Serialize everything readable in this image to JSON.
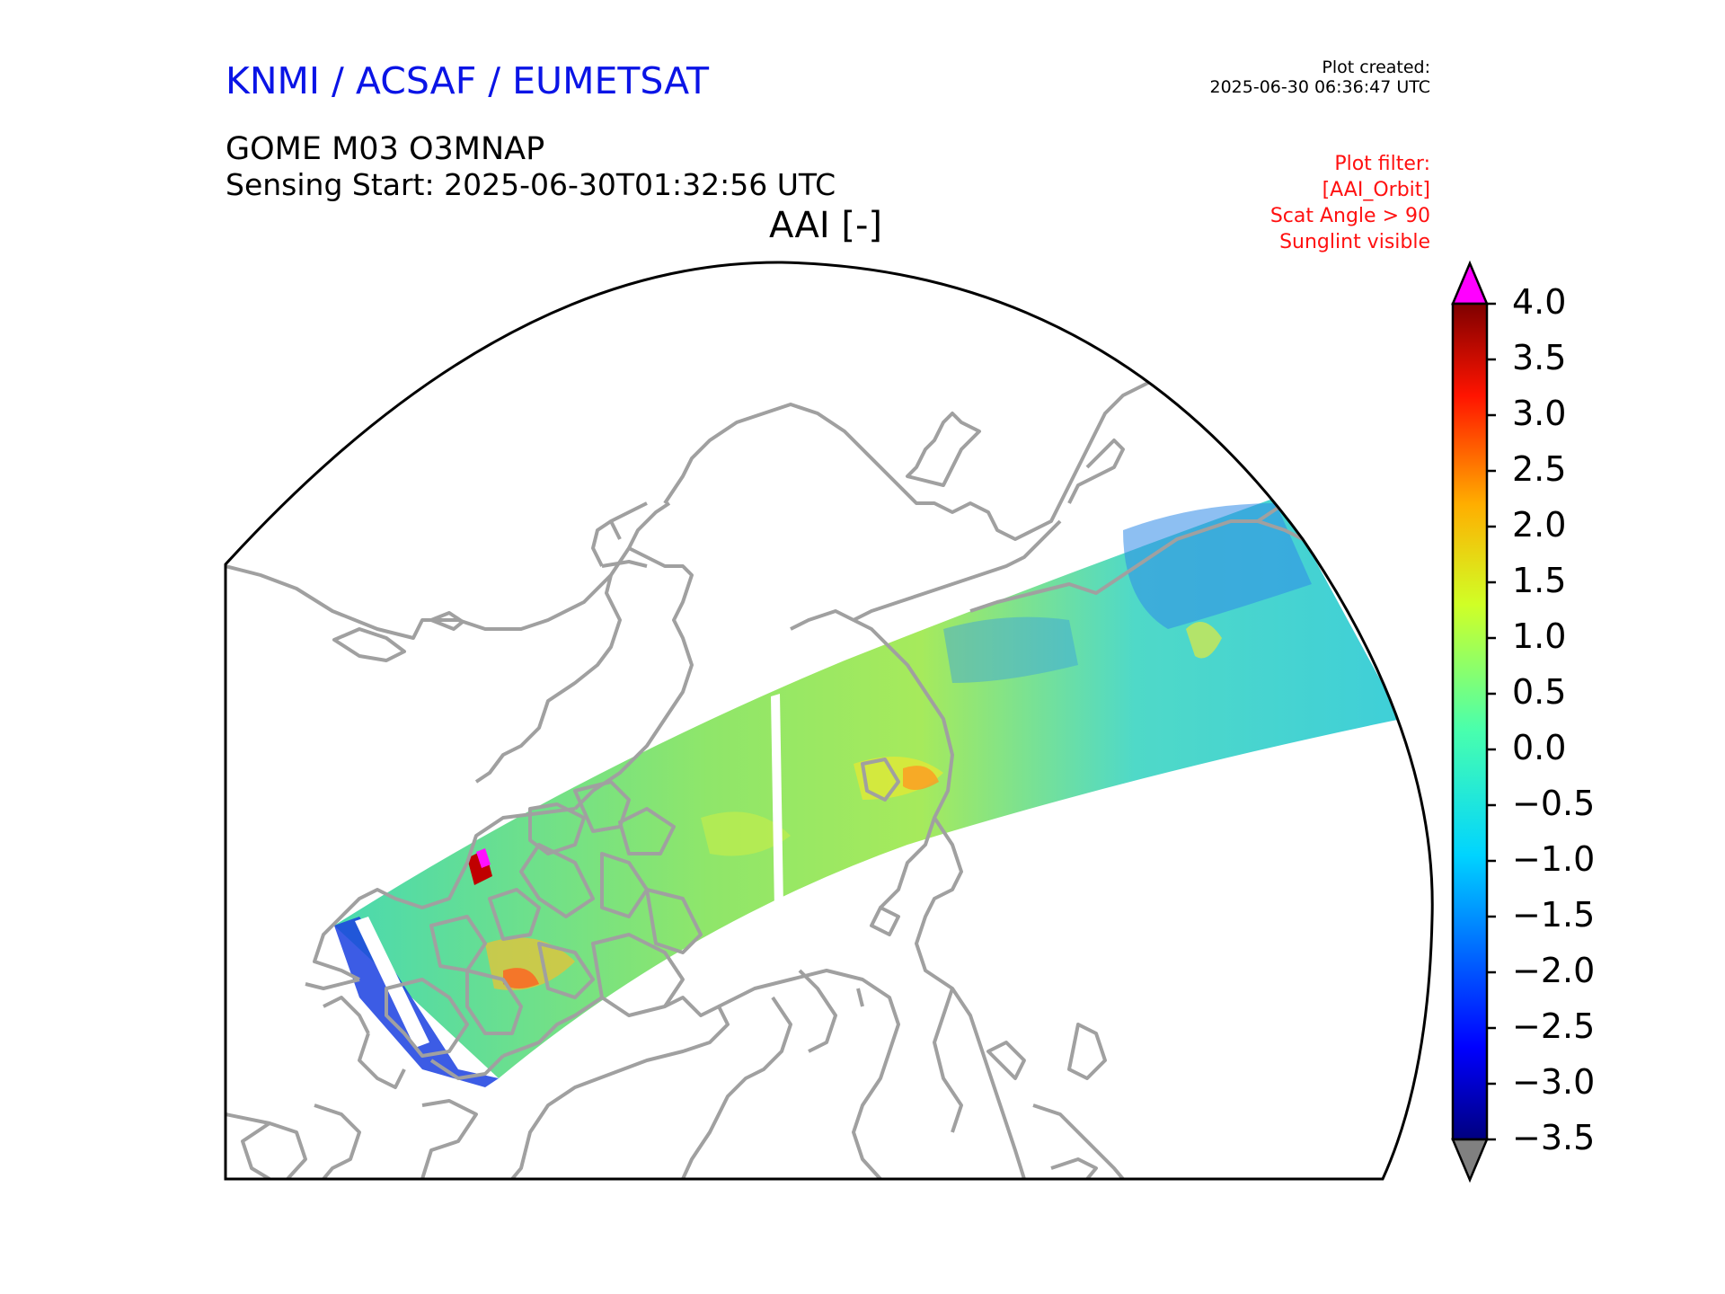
{
  "header": {
    "organization": "KNMI / ACSAF / EUMETSAT",
    "created_label": "Plot created:",
    "created_time": "2025-06-30 06:36:47 UTC",
    "product": "GOME M03 O3MNAP",
    "sensing_start": "Sensing Start: 2025-06-30T01:32:56 UTC",
    "plot_title": "AAI [-]"
  },
  "filter": {
    "lines": [
      "Plot filter:",
      "[AAI_Orbit]",
      "Scat Angle > 90",
      "Sunglint visible"
    ]
  },
  "colorbar": {
    "min": -3.5,
    "max": 4.0,
    "ticks": [
      "4.0",
      "3.5",
      "3.0",
      "2.5",
      "2.0",
      "1.5",
      "1.0",
      "0.5",
      "0.0",
      "−0.5",
      "−1.0",
      "−1.5",
      "−2.0",
      "−2.5",
      "−3.0",
      "−3.5"
    ],
    "over_color": "#ff00ff",
    "under_color": "#808080",
    "colormap": [
      "#00007f",
      "#0000ff",
      "#007fff",
      "#00ffff",
      "#7fff7f",
      "#ffff00",
      "#ff7f00",
      "#ff0000",
      "#7f0000"
    ]
  },
  "colors": {
    "coastline": "#a0a0a0",
    "frame": "#000000"
  }
}
